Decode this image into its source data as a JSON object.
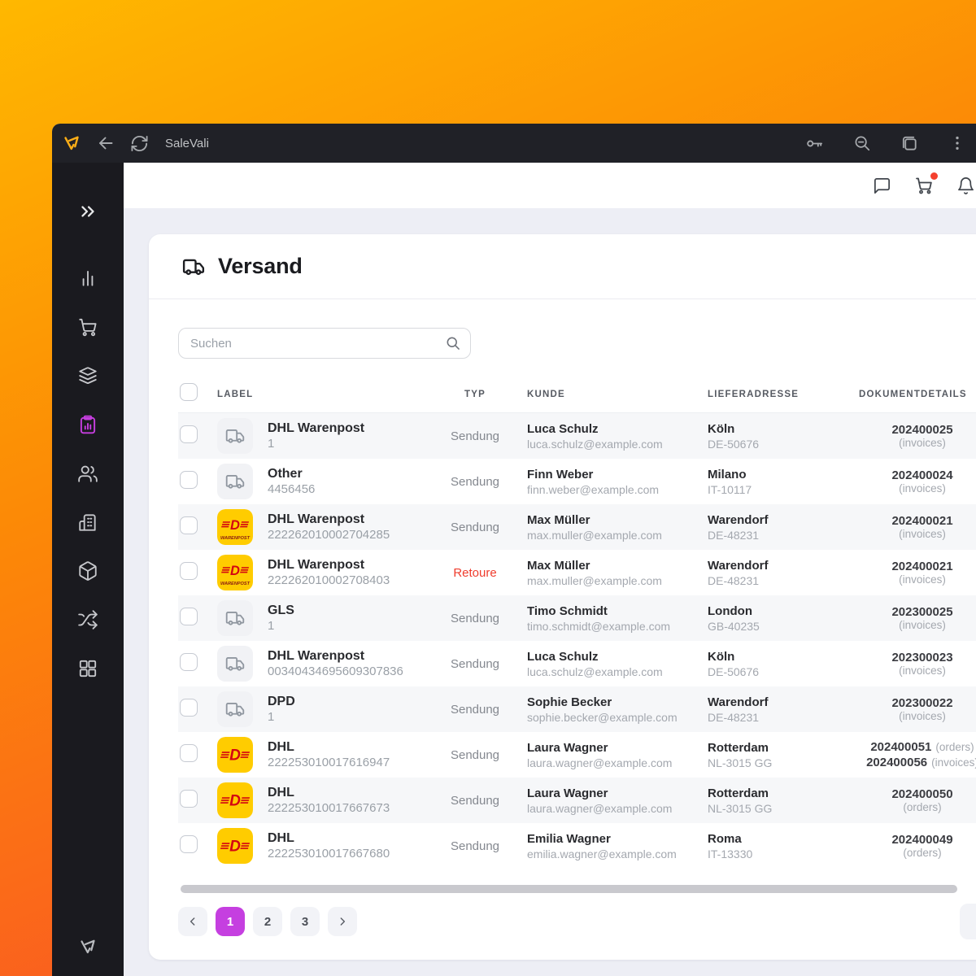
{
  "chrome": {
    "title": "SaleVali",
    "icons": [
      "app-logo",
      "back",
      "reload",
      "key",
      "zoom-out",
      "copy",
      "menu"
    ]
  },
  "app_header": {
    "icons": [
      "chat",
      "cart",
      "notifications"
    ],
    "cart_badge_color": "#f4402e"
  },
  "sidebar": {
    "icons": [
      "expand",
      "analytics",
      "orders",
      "catalog",
      "shipping-reports",
      "customers",
      "company",
      "products",
      "transfers",
      "apps",
      "brand-logo"
    ],
    "active_icon": "shipping-reports",
    "active_color": "#c53ede"
  },
  "page": {
    "title": "Versand",
    "title_icon": "truck",
    "search_placeholder": "Suchen"
  },
  "table": {
    "columns": [
      "LABEL",
      "TYP",
      "KUNDE",
      "LIEFERADRESSE",
      "DOKUMENTDETAILS"
    ],
    "rows": [
      {
        "carrier": "DHL Warenpost",
        "tracking": "1",
        "logo": "truck",
        "typ": "Sendung",
        "typ_return": false,
        "kunde_name": "Luca Schulz",
        "kunde_email": "luca.schulz@example.com",
        "addr_city": "Köln",
        "addr_code": "DE-50676",
        "docs": [
          {
            "num": "202400025",
            "sub": "(invoices)",
            "inline": false
          }
        ]
      },
      {
        "carrier": "Other",
        "tracking": "4456456",
        "logo": "truck",
        "typ": "Sendung",
        "typ_return": false,
        "kunde_name": "Finn Weber",
        "kunde_email": "finn.weber@example.com",
        "addr_city": "Milano",
        "addr_code": "IT-10117",
        "docs": [
          {
            "num": "202400024",
            "sub": "(invoices)",
            "inline": false
          }
        ]
      },
      {
        "carrier": "DHL Warenpost",
        "tracking": "222262010002704285",
        "logo": "dhl-warenpost",
        "typ": "Sendung",
        "typ_return": false,
        "kunde_name": "Max Müller",
        "kunde_email": "max.muller@example.com",
        "addr_city": "Warendorf",
        "addr_code": "DE-48231",
        "docs": [
          {
            "num": "202400021",
            "sub": "(invoices)",
            "inline": false
          }
        ]
      },
      {
        "carrier": "DHL Warenpost",
        "tracking": "222262010002708403",
        "logo": "dhl-warenpost",
        "typ": "Retoure",
        "typ_return": true,
        "kunde_name": "Max Müller",
        "kunde_email": "max.muller@example.com",
        "addr_city": "Warendorf",
        "addr_code": "DE-48231",
        "docs": [
          {
            "num": "202400021",
            "sub": "(invoices)",
            "inline": false
          }
        ]
      },
      {
        "carrier": "GLS",
        "tracking": "1",
        "logo": "truck",
        "typ": "Sendung",
        "typ_return": false,
        "kunde_name": "Timo Schmidt",
        "kunde_email": "timo.schmidt@example.com",
        "addr_city": "London",
        "addr_code": "GB-40235",
        "docs": [
          {
            "num": "202300025",
            "sub": "(invoices)",
            "inline": false
          }
        ]
      },
      {
        "carrier": "DHL Warenpost",
        "tracking": "00340434695609307836",
        "logo": "truck",
        "typ": "Sendung",
        "typ_return": false,
        "kunde_name": "Luca Schulz",
        "kunde_email": "luca.schulz@example.com",
        "addr_city": "Köln",
        "addr_code": "DE-50676",
        "docs": [
          {
            "num": "202300023",
            "sub": "(invoices)",
            "inline": false
          }
        ]
      },
      {
        "carrier": "DPD",
        "tracking": "1",
        "logo": "truck",
        "typ": "Sendung",
        "typ_return": false,
        "kunde_name": "Sophie Becker",
        "kunde_email": "sophie.becker@example.com",
        "addr_city": "Warendorf",
        "addr_code": "DE-48231",
        "docs": [
          {
            "num": "202300022",
            "sub": "(invoices)",
            "inline": false
          }
        ]
      },
      {
        "carrier": "DHL",
        "tracking": "222253010017616947",
        "logo": "dhl",
        "typ": "Sendung",
        "typ_return": false,
        "kunde_name": "Laura Wagner",
        "kunde_email": "laura.wagner@example.com",
        "addr_city": "Rotterdam",
        "addr_code": "NL-3015 GG",
        "docs": [
          {
            "num": "202400051",
            "sub": "(orders)",
            "inline": true
          },
          {
            "num": "202400056",
            "sub": "(invoices)",
            "inline": true
          }
        ]
      },
      {
        "carrier": "DHL",
        "tracking": "222253010017667673",
        "logo": "dhl",
        "typ": "Sendung",
        "typ_return": false,
        "kunde_name": "Laura Wagner",
        "kunde_email": "laura.wagner@example.com",
        "addr_city": "Rotterdam",
        "addr_code": "NL-3015 GG",
        "docs": [
          {
            "num": "202400050",
            "sub": "(orders)",
            "inline": false
          }
        ]
      },
      {
        "carrier": "DHL",
        "tracking": "222253010017667680",
        "logo": "dhl",
        "typ": "Sendung",
        "typ_return": false,
        "kunde_name": "Emilia Wagner",
        "kunde_email": "emilia.wagner@example.com",
        "addr_city": "Roma",
        "addr_code": "IT-13330",
        "docs": [
          {
            "num": "202400049",
            "sub": "(orders)",
            "inline": false
          }
        ]
      }
    ]
  },
  "pagination": {
    "pages": [
      "1",
      "2",
      "3"
    ],
    "active_page": "1",
    "overflow_button": "1"
  },
  "colors": {
    "accent_purple": "#c53fe0",
    "dhl_yellow": "#FFCC00",
    "dhl_red": "#D40511",
    "retoure_red": "#ef3c2d",
    "badge_red": "#f4402e"
  }
}
